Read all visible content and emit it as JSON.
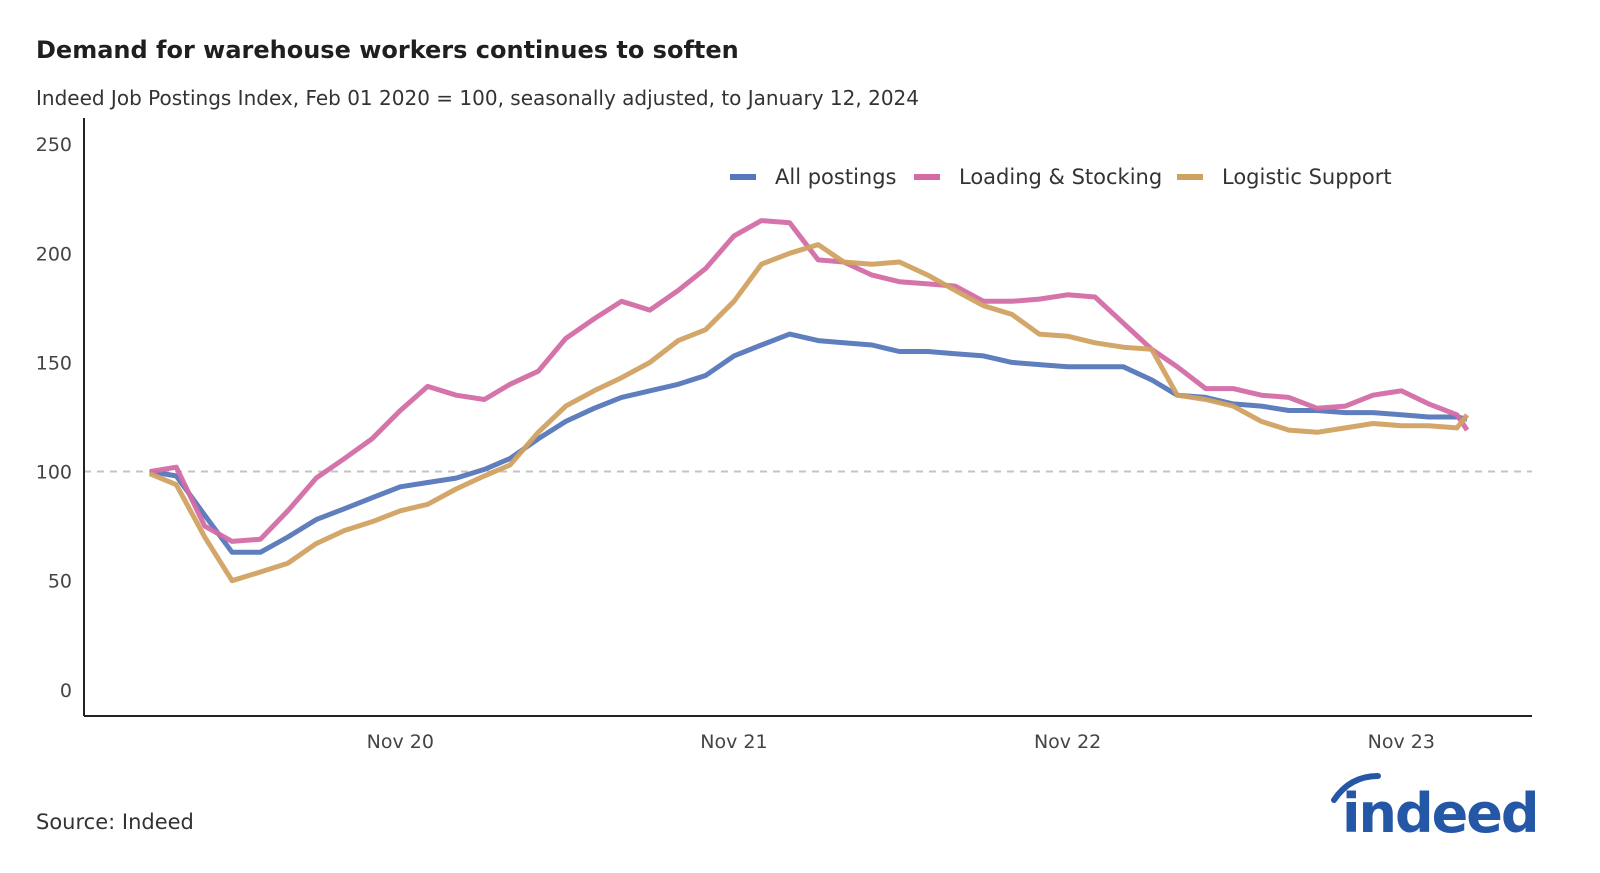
{
  "chart_data": {
    "type": "line",
    "title": "Demand for warehouse workers continues to soften",
    "subtitle": "Indeed Job Postings Index, Feb 01 2020 = 100, seasonally adjusted, to January 12, 2024",
    "source": "Source: Indeed",
    "xlabel": "",
    "ylabel": "",
    "ylim": [
      -12,
      262
    ],
    "xlim": [
      "2019-11-21",
      "2024-03-23"
    ],
    "yticks": [
      0,
      50,
      100,
      150,
      200,
      250
    ],
    "xticks": [
      {
        "date": "2020-11-01",
        "label": "Nov 20"
      },
      {
        "date": "2021-11-01",
        "label": "Nov 21"
      },
      {
        "date": "2022-11-01",
        "label": "Nov 22"
      },
      {
        "date": "2023-11-01",
        "label": "Nov 23"
      }
    ],
    "reference_line": 100,
    "grid": false,
    "legend": {
      "position": "top-right"
    },
    "x": [
      "2020-02-01",
      "2020-03-01",
      "2020-04-01",
      "2020-05-01",
      "2020-06-01",
      "2020-07-01",
      "2020-08-01",
      "2020-09-01",
      "2020-10-01",
      "2020-11-01",
      "2020-12-01",
      "2021-01-01",
      "2021-02-01",
      "2021-03-01",
      "2021-04-01",
      "2021-05-01",
      "2021-06-01",
      "2021-07-01",
      "2021-08-01",
      "2021-09-01",
      "2021-10-01",
      "2021-11-01",
      "2021-12-01",
      "2022-01-01",
      "2022-02-01",
      "2022-03-01",
      "2022-04-01",
      "2022-05-01",
      "2022-06-01",
      "2022-07-01",
      "2022-08-01",
      "2022-09-01",
      "2022-10-01",
      "2022-11-01",
      "2022-12-01",
      "2023-01-01",
      "2023-02-01",
      "2023-03-01",
      "2023-04-01",
      "2023-05-01",
      "2023-06-01",
      "2023-07-01",
      "2023-08-01",
      "2023-09-01",
      "2023-10-01",
      "2023-11-01",
      "2023-12-01",
      "2024-01-01",
      "2024-01-12"
    ],
    "series": [
      {
        "name": "All postings",
        "color": "#5577bb",
        "values": [
          100,
          98,
          80,
          63,
          63,
          70,
          78,
          83,
          88,
          93,
          95,
          97,
          101,
          106,
          115,
          123,
          129,
          134,
          137,
          140,
          144,
          153,
          158,
          163,
          160,
          159,
          158,
          155,
          155,
          154,
          153,
          150,
          149,
          148,
          148,
          148,
          142,
          135,
          134,
          131,
          130,
          128,
          128,
          127,
          127,
          126,
          125,
          125,
          124
        ]
      },
      {
        "name": "Loading & Stocking",
        "color": "#d36ba6",
        "values": [
          100,
          102,
          75,
          68,
          69,
          82,
          97,
          106,
          115,
          128,
          139,
          135,
          133,
          140,
          146,
          161,
          170,
          178,
          174,
          183,
          193,
          208,
          215,
          214,
          197,
          196,
          190,
          187,
          186,
          185,
          178,
          178,
          179,
          181,
          180,
          168,
          156,
          148,
          138,
          138,
          135,
          134,
          129,
          130,
          135,
          137,
          131,
          126,
          119
        ]
      },
      {
        "name": "Logistic Support",
        "color": "#d0a261",
        "values": [
          99,
          94,
          70,
          50,
          54,
          58,
          67,
          73,
          77,
          82,
          85,
          92,
          98,
          103,
          118,
          130,
          137,
          143,
          150,
          160,
          165,
          178,
          195,
          200,
          204,
          196,
          195,
          196,
          190,
          183,
          176,
          172,
          163,
          162,
          159,
          157,
          156,
          135,
          133,
          130,
          123,
          119,
          118,
          120,
          122,
          121,
          121,
          120,
          126
        ]
      }
    ]
  },
  "logo": {
    "text": "indeed",
    "color": "#2557a7"
  }
}
